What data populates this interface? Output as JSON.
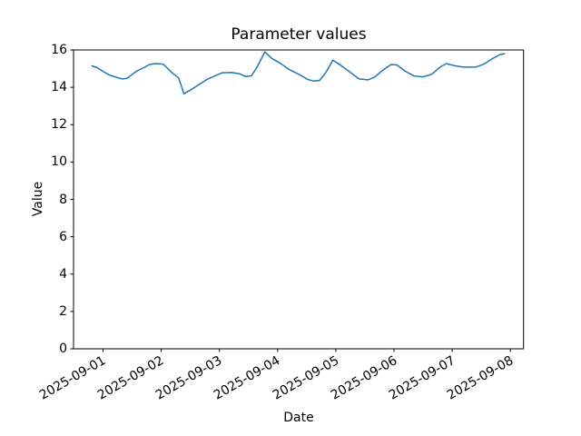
{
  "figure": {
    "title": "Parameter values",
    "xlabel": "Date",
    "ylabel": "Value"
  },
  "chart_data": {
    "type": "line",
    "title": "Parameter values",
    "xlabel": "Date",
    "ylabel": "Value",
    "grid": false,
    "legend": "none",
    "line_color": "#1f77b4",
    "ylim": [
      0,
      16
    ],
    "y_ticks": [
      0,
      2,
      4,
      6,
      8,
      10,
      12,
      14,
      16
    ],
    "x_tick_labels": [
      "2025-09-01",
      "2025-09-02",
      "2025-09-03",
      "2025-09-04",
      "2025-09-05",
      "2025-09-06",
      "2025-09-07",
      "2025-09-08"
    ],
    "x_axis_origin": "2025-09-01T00:00",
    "x_unit": "days since 2025-09-01 00:00",
    "xlim_days": [
      -0.507,
      7.226
    ],
    "series": [
      {
        "name": "Parameter value",
        "x_days": [
          -0.19,
          -0.1,
          0.0,
          0.1,
          0.26,
          0.33,
          0.41,
          0.57,
          0.7,
          0.8,
          0.9,
          1.0,
          1.04,
          1.19,
          1.3,
          1.39,
          1.5,
          1.65,
          1.8,
          1.95,
          2.05,
          2.2,
          2.35,
          2.45,
          2.55,
          2.65,
          2.78,
          2.9,
          3.05,
          3.2,
          3.38,
          3.52,
          3.62,
          3.72,
          3.82,
          3.95,
          4.1,
          4.25,
          4.4,
          4.55,
          4.67,
          4.8,
          4.95,
          5.05,
          5.2,
          5.35,
          5.5,
          5.65,
          5.8,
          5.9,
          6.05,
          6.2,
          6.4,
          6.55,
          6.7,
          6.82,
          6.9
        ],
        "values": [
          15.15,
          15.05,
          14.85,
          14.67,
          14.5,
          14.45,
          14.48,
          14.85,
          15.05,
          15.22,
          15.27,
          15.25,
          15.22,
          14.77,
          14.5,
          13.65,
          13.85,
          14.15,
          14.45,
          14.65,
          14.78,
          14.8,
          14.72,
          14.58,
          14.62,
          15.1,
          15.9,
          15.55,
          15.28,
          14.95,
          14.67,
          14.42,
          14.33,
          14.37,
          14.75,
          15.45,
          15.15,
          14.8,
          14.45,
          14.4,
          14.55,
          14.9,
          15.22,
          15.2,
          14.85,
          14.6,
          14.56,
          14.7,
          15.1,
          15.27,
          15.15,
          15.08,
          15.08,
          15.25,
          15.55,
          15.75,
          15.8
        ]
      }
    ]
  }
}
